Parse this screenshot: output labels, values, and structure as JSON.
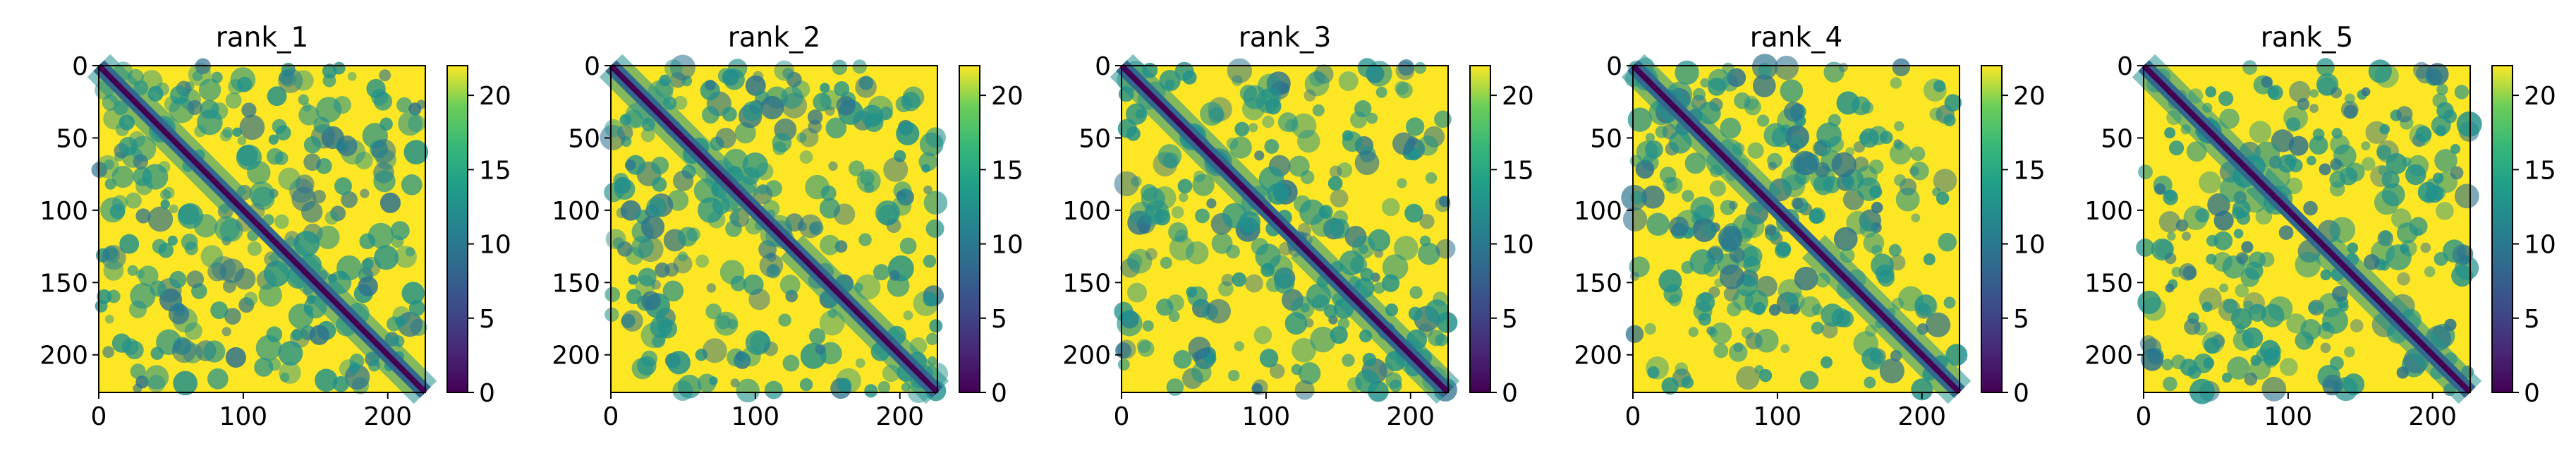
{
  "chart_data": [
    {
      "type": "heatmap",
      "title": "rank_1",
      "xlim": [
        0,
        226
      ],
      "ylim": [
        226,
        0
      ],
      "x_ticks": [
        0,
        100,
        200
      ],
      "y_ticks": [
        0,
        50,
        100,
        150,
        200
      ],
      "colorbar": {
        "colormap": "viridis",
        "range": [
          0,
          22
        ],
        "ticks": [
          0,
          5,
          10,
          15,
          20
        ]
      },
      "matrix_description": "predicted aligned error / distance matrix, low values along diagonal",
      "low_color": "#440154",
      "mid_color": "#21918c",
      "high_color": "#fde725"
    },
    {
      "type": "heatmap",
      "title": "rank_2",
      "xlim": [
        0,
        226
      ],
      "ylim": [
        226,
        0
      ],
      "x_ticks": [
        0,
        100,
        200
      ],
      "y_ticks": [
        0,
        50,
        100,
        150,
        200
      ],
      "colorbar": {
        "colormap": "viridis",
        "range": [
          0,
          22
        ],
        "ticks": [
          0,
          5,
          10,
          15,
          20
        ]
      },
      "matrix_description": "predicted aligned error / distance matrix, low values along diagonal",
      "low_color": "#440154",
      "mid_color": "#21918c",
      "high_color": "#fde725"
    },
    {
      "type": "heatmap",
      "title": "rank_3",
      "xlim": [
        0,
        226
      ],
      "ylim": [
        226,
        0
      ],
      "x_ticks": [
        0,
        100,
        200
      ],
      "y_ticks": [
        0,
        50,
        100,
        150,
        200
      ],
      "colorbar": {
        "colormap": "viridis",
        "range": [
          0,
          22
        ],
        "ticks": [
          0,
          5,
          10,
          15,
          20
        ]
      },
      "matrix_description": "predicted aligned error / distance matrix, low values along diagonal",
      "low_color": "#440154",
      "mid_color": "#21918c",
      "high_color": "#fde725"
    },
    {
      "type": "heatmap",
      "title": "rank_4",
      "xlim": [
        0,
        226
      ],
      "ylim": [
        226,
        0
      ],
      "x_ticks": [
        0,
        100,
        200
      ],
      "y_ticks": [
        0,
        50,
        100,
        150,
        200
      ],
      "colorbar": {
        "colormap": "viridis",
        "range": [
          0,
          22
        ],
        "ticks": [
          0,
          5,
          10,
          15,
          20
        ]
      },
      "matrix_description": "predicted aligned error / distance matrix, low values along diagonal",
      "low_color": "#440154",
      "mid_color": "#21918c",
      "high_color": "#fde725"
    },
    {
      "type": "heatmap",
      "title": "rank_5",
      "xlim": [
        0,
        226
      ],
      "ylim": [
        226,
        0
      ],
      "x_ticks": [
        0,
        100,
        200
      ],
      "y_ticks": [
        0,
        50,
        100,
        150,
        200
      ],
      "colorbar": {
        "colormap": "viridis",
        "range": [
          0,
          22
        ],
        "ticks": [
          0,
          5,
          10,
          15,
          20
        ]
      },
      "matrix_description": "predicted aligned error / distance matrix, low values along diagonal",
      "low_color": "#440154",
      "mid_color": "#21918c",
      "high_color": "#fde725"
    }
  ]
}
